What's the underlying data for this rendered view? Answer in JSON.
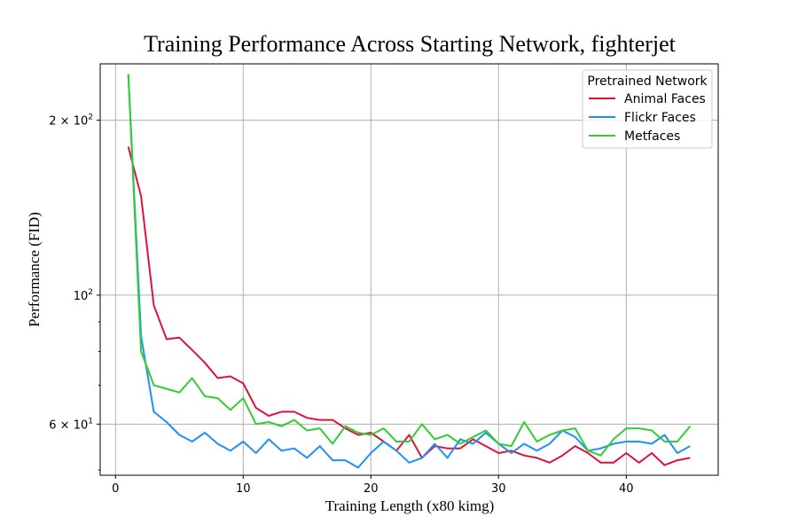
{
  "chart_data": {
    "type": "line",
    "title": "Training Performance Across Starting Network, fighterjet",
    "xlabel": "Training Length (x80 kimg)",
    "ylabel": "Performance (FID)",
    "xlim": [
      -1.2,
      47.2
    ],
    "ylim": [
      49,
      250
    ],
    "yscale": "log",
    "grid": true,
    "x_ticks": [
      0,
      10,
      20,
      30,
      40
    ],
    "y_ticks": [
      {
        "value": 200,
        "mantissa": "2 × 10",
        "exp": "2"
      },
      {
        "value": 100,
        "mantissa": "10",
        "exp": "2"
      },
      {
        "value": 60,
        "mantissa": "6 × 10",
        "exp": "1"
      }
    ],
    "y_minor_ticks": [
      50,
      70,
      80,
      90
    ],
    "legend": {
      "title": "Pretrained Network",
      "position": "upper right"
    },
    "x": [
      1,
      2,
      3,
      4,
      5,
      6,
      7,
      8,
      9,
      10,
      11,
      12,
      13,
      14,
      15,
      16,
      17,
      18,
      19,
      20,
      21,
      22,
      23,
      24,
      25,
      26,
      27,
      28,
      29,
      30,
      31,
      32,
      33,
      34,
      35,
      36,
      37,
      38,
      39,
      40,
      41,
      42,
      43,
      44,
      45
    ],
    "series": [
      {
        "name": "Animal Faces",
        "color": "#dc143c",
        "values": [
          180,
          148,
          96,
          84,
          84.5,
          80.5,
          76.5,
          72,
          72.5,
          70.5,
          64,
          62,
          63,
          63,
          61.5,
          61,
          61,
          59,
          57.5,
          58,
          56,
          54,
          57.5,
          52.5,
          55,
          54.5,
          54.5,
          56.5,
          55,
          53.5,
          54,
          53,
          52.5,
          51.5,
          53,
          55,
          53.5,
          51.5,
          51.5,
          53.5,
          51.5,
          53.5,
          51,
          52,
          52.5
        ]
      },
      {
        "name": "Flickr Faces",
        "color": "#1e90ff",
        "values": [
          240,
          85,
          63,
          60.5,
          57.5,
          56,
          58,
          55.5,
          54,
          56,
          53.5,
          56.5,
          54,
          54.5,
          52.5,
          55,
          52,
          52,
          50.5,
          53.5,
          56,
          54,
          51.5,
          52.5,
          55.5,
          52.5,
          56.5,
          55.5,
          58,
          55.5,
          53.5,
          55.5,
          54,
          55.5,
          58.5,
          57,
          54,
          54.5,
          55.5,
          56,
          56,
          55.5,
          57.5,
          53.5,
          55
        ]
      },
      {
        "name": "Metfaces",
        "color": "#32cd32",
        "values": [
          240,
          80,
          70,
          69,
          68,
          72,
          67,
          66.5,
          63.5,
          66.5,
          60,
          60.5,
          59.5,
          61,
          58.5,
          59,
          55.5,
          59.5,
          58,
          57.5,
          59,
          56,
          56,
          60,
          56.5,
          57.5,
          55.5,
          57,
          58.5,
          55.5,
          55,
          60.5,
          56,
          57.5,
          58.5,
          59,
          54,
          53,
          56.5,
          59,
          59,
          58.5,
          56,
          56,
          59.5
        ]
      }
    ]
  }
}
